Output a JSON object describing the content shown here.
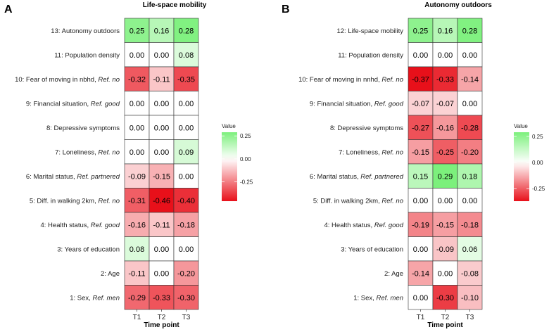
{
  "chart_data": [
    {
      "type": "heatmap",
      "panel": "A",
      "title": "Life-space mobility",
      "xlabel": "Time point",
      "ylabel": "",
      "x": [
        "T1",
        "T2",
        "T3"
      ],
      "rows": [
        {
          "label": "13: Autonomy outdoors",
          "ref": "",
          "values": [
            0.25,
            0.16,
            0.28
          ],
          "labels": [
            "0.25",
            "0.16",
            "0.28"
          ]
        },
        {
          "label": "11: Population density",
          "ref": "",
          "values": [
            0.0,
            0.0,
            0.08
          ],
          "labels": [
            "0.00",
            "0.00",
            "0.08"
          ]
        },
        {
          "label": "10: Fear of moving in nbhd, ",
          "ref": "Ref. no",
          "values": [
            -0.32,
            -0.11,
            -0.35
          ],
          "labels": [
            "-0.32",
            "-0.11",
            "-0.35"
          ]
        },
        {
          "label": "9: Financial situation, ",
          "ref": "Ref. good",
          "values": [
            0.0,
            0.0,
            0.0
          ],
          "labels": [
            "0.00",
            "0.00",
            "0.00"
          ]
        },
        {
          "label": "8: Depressive symptoms",
          "ref": "",
          "values": [
            0.0,
            0.0,
            0.0
          ],
          "labels": [
            "0.00",
            "0.00",
            "0.00"
          ]
        },
        {
          "label": "7: Loneliness, ",
          "ref": "Ref. no",
          "values": [
            0.0,
            0.0,
            0.09
          ],
          "labels": [
            "0.00",
            "0.00",
            "0.09"
          ]
        },
        {
          "label": "6: Marital status, ",
          "ref": "Ref. partnered",
          "values": [
            -0.09,
            -0.15,
            0.0
          ],
          "labels": [
            "-0.09",
            "-0.15",
            "0.00"
          ]
        },
        {
          "label": "5: Diff. in walking 2km, ",
          "ref": "Ref. no",
          "values": [
            -0.31,
            -0.46,
            -0.4
          ],
          "labels": [
            "-0.31",
            "-0.46",
            "-0.40"
          ]
        },
        {
          "label": "4: Health status, ",
          "ref": "Ref. good",
          "values": [
            -0.16,
            -0.11,
            -0.18
          ],
          "labels": [
            "-0.16",
            "-0.11",
            "-0.18"
          ]
        },
        {
          "label": "3: Years of education",
          "ref": "",
          "values": [
            0.08,
            0.0,
            0.0
          ],
          "labels": [
            "0.08",
            "0.00",
            "0.00"
          ]
        },
        {
          "label": "2: Age",
          "ref": "",
          "values": [
            -0.11,
            0.0,
            -0.2
          ],
          "labels": [
            "-0.11",
            "0.00",
            "-0.20"
          ]
        },
        {
          "label": "1: Sex, ",
          "ref": "Ref. men",
          "values": [
            -0.29,
            -0.33,
            -0.3
          ],
          "labels": [
            "-0.29",
            "-0.33",
            "-0.30"
          ]
        }
      ],
      "legend": {
        "title": "Value",
        "ticks": [
          "0.25",
          "0.00",
          "-0.25"
        ],
        "tick_values": [
          0.25,
          0.0,
          -0.25
        ],
        "min": -0.46,
        "max": 0.29
      }
    },
    {
      "type": "heatmap",
      "panel": "B",
      "title": "Autonomy outdoors",
      "xlabel": "Time point",
      "ylabel": "",
      "x": [
        "T1",
        "T2",
        "T3"
      ],
      "rows": [
        {
          "label": "12: Life-space mobility",
          "ref": "",
          "values": [
            0.25,
            0.16,
            0.28
          ],
          "labels": [
            "0.25",
            "0.16",
            "0.28"
          ]
        },
        {
          "label": "11: Population density",
          "ref": "",
          "values": [
            0.0,
            0.0,
            0.0
          ],
          "labels": [
            "0.00",
            "0.00",
            "0.00"
          ]
        },
        {
          "label": "10: Fear of moving in nnhd, ",
          "ref": "Ref. no",
          "values": [
            -0.37,
            -0.33,
            -0.14
          ],
          "labels": [
            "-0.37",
            "-0.33",
            "-0.14"
          ]
        },
        {
          "label": "9: Financial situation, ",
          "ref": "Ref. good",
          "values": [
            -0.07,
            -0.07,
            0.0
          ],
          "labels": [
            "-0.07",
            "-0.07",
            "0.00"
          ]
        },
        {
          "label": "8: Depressive symptoms",
          "ref": "",
          "values": [
            -0.27,
            -0.16,
            -0.28
          ],
          "labels": [
            "-0.27",
            "-0.16",
            "-0.28"
          ]
        },
        {
          "label": "7: Loneliness, ",
          "ref": "Ref. no",
          "values": [
            -0.15,
            -0.25,
            -0.2
          ],
          "labels": [
            "-0.15",
            "-0.25",
            "-0.20"
          ]
        },
        {
          "label": "6: Marital status, ",
          "ref": "Ref. partnered",
          "values": [
            0.15,
            0.29,
            0.18
          ],
          "labels": [
            "0.15",
            "0.29",
            "0.18"
          ]
        },
        {
          "label": "5: Diff. in walking 2km, ",
          "ref": "Ref. no",
          "values": [
            0.0,
            0.0,
            0.0
          ],
          "labels": [
            "0.00",
            "0.00",
            "0.00"
          ]
        },
        {
          "label": "4: Health status, ",
          "ref": "Ref. good",
          "values": [
            -0.19,
            -0.15,
            -0.18
          ],
          "labels": [
            "-0.19",
            "-0.15",
            "-0.18"
          ]
        },
        {
          "label": "3: Years of education",
          "ref": "",
          "values": [
            0.0,
            -0.09,
            0.06
          ],
          "labels": [
            "0.00",
            "-0.09",
            "0.06"
          ]
        },
        {
          "label": "2: Age",
          "ref": "",
          "values": [
            -0.14,
            0.0,
            -0.08
          ],
          "labels": [
            "-0.14",
            "0.00",
            "-0.08"
          ]
        },
        {
          "label": "1: Sex, ",
          "ref": "Ref. men",
          "values": [
            0.0,
            -0.3,
            -0.1
          ],
          "labels": [
            "0.00",
            "-0.30",
            "-0.10"
          ]
        }
      ],
      "legend": {
        "title": "Value",
        "ticks": [
          "0.25",
          "0.00",
          "-0.25"
        ],
        "tick_values": [
          0.25,
          0.0,
          -0.25
        ],
        "min": -0.37,
        "max": 0.29
      }
    }
  ],
  "colors": {
    "positive": "#7CF07C",
    "neutral": "#FFFFFF",
    "negative": "#E8101A",
    "grid": "#333333"
  }
}
